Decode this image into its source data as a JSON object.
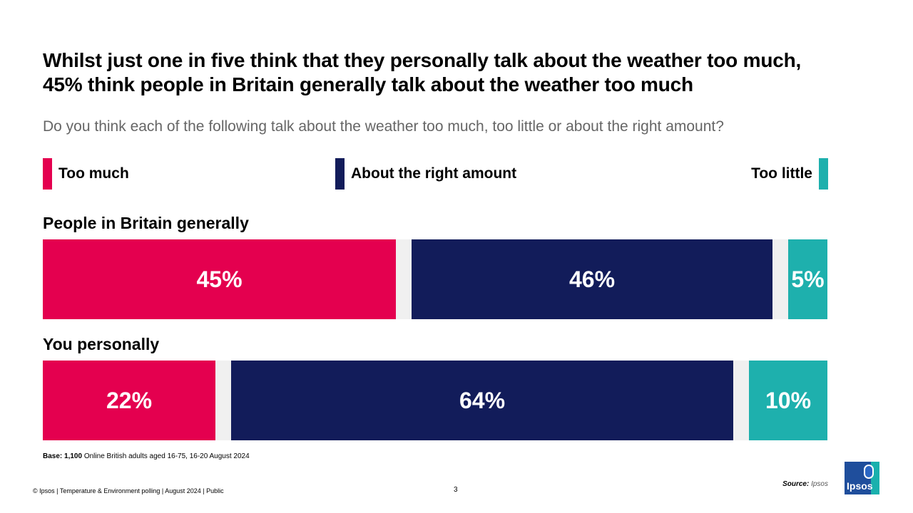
{
  "title": "Whilst just one in five think that they personally talk about the weather too much, 45% think people in Britain generally talk about the weather too much",
  "subtitle": "Do you think each of the following talk about the weather too much, too little or about the right amount?",
  "legend": {
    "too_much": "Too much",
    "right_amount": "About the right amount",
    "too_little": "Too little"
  },
  "colors": {
    "too_much": "#e4004f",
    "right_amount": "#121c5a",
    "too_little": "#1eb0ad",
    "gap": "#f0f0f0"
  },
  "chart_data": {
    "type": "bar",
    "orientation": "horizontal-stacked",
    "categories": [
      "People in Britain generally",
      "You personally"
    ],
    "series": [
      {
        "name": "Too much",
        "values": [
          45,
          22
        ]
      },
      {
        "name": "About the right amount",
        "values": [
          46,
          64
        ]
      },
      {
        "name": "Too little",
        "values": [
          5,
          10
        ]
      }
    ],
    "value_labels": [
      [
        "45%",
        "46%",
        "5%"
      ],
      [
        "22%",
        "64%",
        "10%"
      ]
    ],
    "legend_position": "top",
    "grid": false
  },
  "base_note": {
    "label": "Base:",
    "count": "1,100",
    "text": "Online British adults aged 16-75, 16-20 August 2024"
  },
  "footer": "© Ipsos | Temperature & Environment  polling | August 2024 | Public",
  "page_number": "3",
  "source": {
    "label": "Source:",
    "value": "Ipsos"
  },
  "logo_text": "Ipsos"
}
